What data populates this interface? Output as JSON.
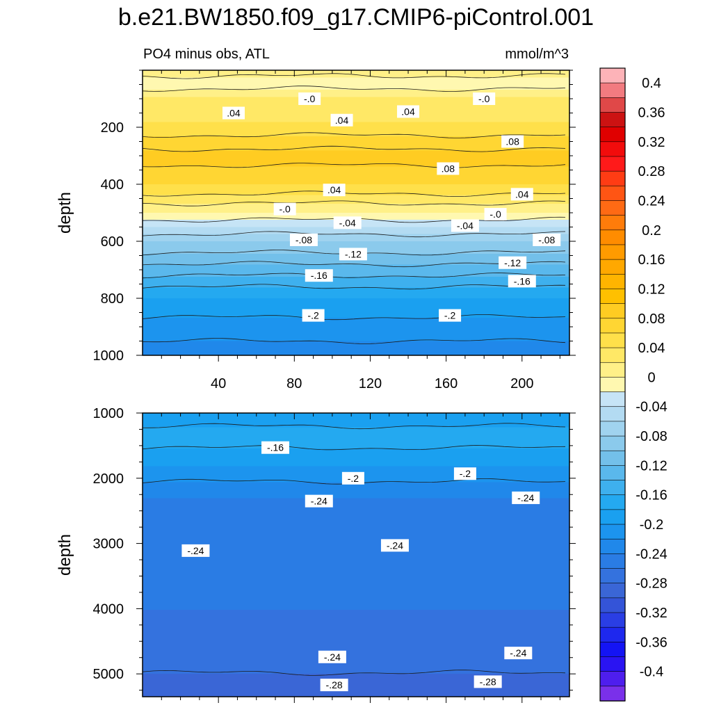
{
  "chart_data": {
    "type": "heatmap",
    "title": "b.e21.BW1850.f09_g17.CMIP6-piControl.001",
    "subtitle_left": "PO4 minus obs, ATL",
    "units": "mmol/m^3",
    "colorbar": {
      "tick_labels": [
        "0.4",
        "0.36",
        "0.32",
        "0.28",
        "0.24",
        "0.2",
        "0.16",
        "0.12",
        "0.08",
        "0.04",
        "0",
        "-0.04",
        "-0.08",
        "-0.12",
        "-0.16",
        "-0.2",
        "-0.24",
        "-0.28",
        "-0.32",
        "-0.36",
        "-0.4"
      ],
      "levels_top_to_bottom": [
        0.42,
        0.4,
        0.38,
        0.36,
        0.34,
        0.32,
        0.3,
        0.28,
        0.26,
        0.24,
        0.22,
        0.2,
        0.18,
        0.16,
        0.14,
        0.12,
        0.1,
        0.08,
        0.06,
        0.04,
        0.02,
        0.0,
        -0.02,
        -0.04,
        -0.06,
        -0.08,
        -0.1,
        -0.12,
        -0.14,
        -0.16,
        -0.18,
        -0.2,
        -0.22,
        -0.24,
        -0.26,
        -0.28,
        -0.3,
        -0.32,
        -0.34,
        -0.36,
        -0.38,
        -0.4,
        -0.42
      ],
      "colors_top_to_bottom": [
        "#fdb3b8",
        "#f27b80",
        "#e04848",
        "#cc1212",
        "#e00000",
        "#f20c0c",
        "#ff1a1a",
        "#ff3c14",
        "#ff5514",
        "#ff6a14",
        "#ff7c0a",
        "#ff8c00",
        "#ff9b00",
        "#ffa800",
        "#ffb400",
        "#ffc000",
        "#ffcc22",
        "#ffd633",
        "#ffe04a",
        "#ffe866",
        "#fff088",
        "#fff8b0",
        "#c6e4f6",
        "#b3dbf2",
        "#a0d3ef",
        "#8bcaec",
        "#73c0ea",
        "#5ab8ec",
        "#3eb0ee",
        "#24a9f0",
        "#1aa0f0",
        "#1c94ee",
        "#2088ea",
        "#2a7ce4",
        "#3472de",
        "#3a66d6",
        "#3454d8",
        "#2a3ee4",
        "#1e28ee",
        "#1414f4",
        "#2a14f2",
        "#4e1eee",
        "#7a30ea"
      ]
    },
    "panels": [
      {
        "ylabel": "depth",
        "x_ticks": [
          40,
          80,
          120,
          160,
          200
        ],
        "x_range": [
          0,
          225
        ],
        "y_ticks": [
          200,
          400,
          600,
          800,
          1000
        ],
        "y_range": [
          0,
          1000
        ],
        "y_reversed": true,
        "depth_profile": [
          {
            "depth": 0,
            "value": 0.02
          },
          {
            "depth": 40,
            "value": -0.02
          },
          {
            "depth": 90,
            "value": 0.02
          },
          {
            "depth": 180,
            "value": 0.04
          },
          {
            "depth": 300,
            "value": 0.09
          },
          {
            "depth": 400,
            "value": 0.06
          },
          {
            "depth": 450,
            "value": 0.03
          },
          {
            "depth": 500,
            "value": 0.0
          },
          {
            "depth": 550,
            "value": -0.04
          },
          {
            "depth": 600,
            "value": -0.08
          },
          {
            "depth": 700,
            "value": -0.13
          },
          {
            "depth": 800,
            "value": -0.18
          },
          {
            "depth": 900,
            "value": -0.21
          },
          {
            "depth": 1000,
            "value": -0.23
          }
        ],
        "contour_labels": [
          {
            "text": "-.0",
            "x": 88,
            "depth": 100
          },
          {
            "text": "-.0",
            "x": 180,
            "depth": 100
          },
          {
            "text": ".04",
            "x": 48,
            "depth": 150
          },
          {
            "text": ".04",
            "x": 140,
            "depth": 145
          },
          {
            "text": ".04",
            "x": 105,
            "depth": 175
          },
          {
            "text": ".08",
            "x": 195,
            "depth": 250
          },
          {
            "text": ".08",
            "x": 161,
            "depth": 345
          },
          {
            "text": ".04",
            "x": 101,
            "depth": 420
          },
          {
            "text": ".04",
            "x": 200,
            "depth": 435
          },
          {
            "text": "-.0",
            "x": 75,
            "depth": 487
          },
          {
            "text": "-.0",
            "x": 186,
            "depth": 505
          },
          {
            "text": "-.04",
            "x": 108,
            "depth": 535
          },
          {
            "text": "-.04",
            "x": 170,
            "depth": 545
          },
          {
            "text": "-.08",
            "x": 85,
            "depth": 595
          },
          {
            "text": "-.08",
            "x": 213,
            "depth": 595
          },
          {
            "text": "-.12",
            "x": 111,
            "depth": 645
          },
          {
            "text": "-.12",
            "x": 195,
            "depth": 675
          },
          {
            "text": "-.16",
            "x": 93,
            "depth": 720
          },
          {
            "text": "-.16",
            "x": 200,
            "depth": 740
          },
          {
            "text": "-.2",
            "x": 90,
            "depth": 860
          },
          {
            "text": "-.2",
            "x": 162,
            "depth": 860
          }
        ]
      },
      {
        "ylabel": "depth",
        "x_range": [
          0,
          225
        ],
        "y_ticks": [
          1000,
          2000,
          3000,
          4000,
          5000
        ],
        "y_range": [
          1000,
          5350
        ],
        "y_reversed": true,
        "depth_profile": [
          {
            "depth": 1000,
            "value": -0.19
          },
          {
            "depth": 1400,
            "value": -0.17
          },
          {
            "depth": 1800,
            "value": -0.2
          },
          {
            "depth": 2300,
            "value": -0.24
          },
          {
            "depth": 3000,
            "value": -0.25
          },
          {
            "depth": 4000,
            "value": -0.26
          },
          {
            "depth": 4800,
            "value": -0.27
          },
          {
            "depth": 5350,
            "value": -0.3
          }
        ],
        "contour_labels": [
          {
            "text": "-.16",
            "x": 70,
            "depth": 1530
          },
          {
            "text": "-.2",
            "x": 111,
            "depth": 2000
          },
          {
            "text": "-.2",
            "x": 170,
            "depth": 1930
          },
          {
            "text": "-.24",
            "x": 93,
            "depth": 2350
          },
          {
            "text": "-.24",
            "x": 202,
            "depth": 2300
          },
          {
            "text": "-.24",
            "x": 28,
            "depth": 3110
          },
          {
            "text": "-.24",
            "x": 133,
            "depth": 3030
          },
          {
            "text": "-.24",
            "x": 100,
            "depth": 4740
          },
          {
            "text": "-.24",
            "x": 198,
            "depth": 4680
          },
          {
            "text": "-.28",
            "x": 101,
            "depth": 5170
          },
          {
            "text": "-.28",
            "x": 182,
            "depth": 5120
          }
        ]
      }
    ]
  }
}
